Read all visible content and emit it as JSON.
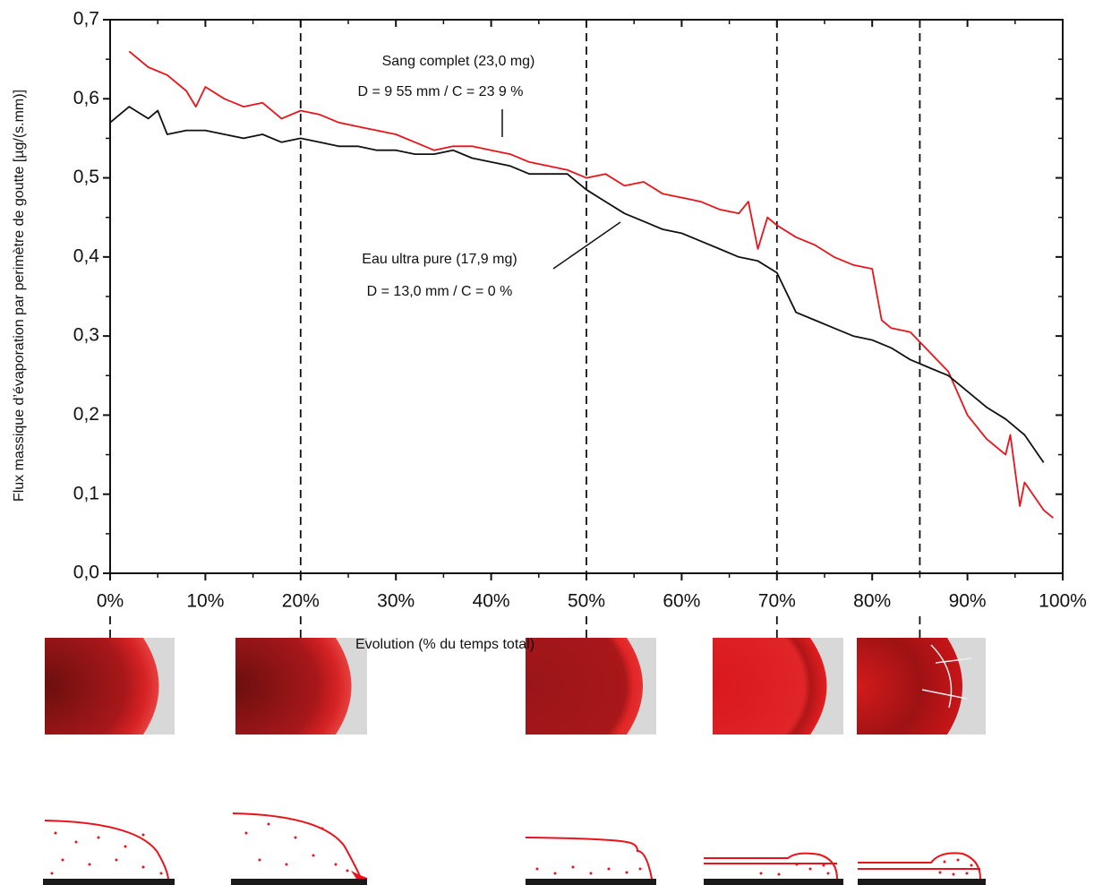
{
  "chart_data": {
    "type": "line",
    "x_label": "Evolution (% du temps total)",
    "y_label": "Flux massique d’évaporation par perimètre de goutte [µg/(s.mm)]",
    "xlim": [
      0,
      100
    ],
    "xticks": [
      {
        "value": 0,
        "label": "0%"
      },
      {
        "value": 10,
        "label": "10%"
      },
      {
        "value": 20,
        "label": "20%"
      },
      {
        "value": 30,
        "label": "30%"
      },
      {
        "value": 40,
        "label": "40%"
      },
      {
        "value": 50,
        "label": "50%"
      },
      {
        "value": 60,
        "label": "60%"
      },
      {
        "value": 70,
        "label": "70%"
      },
      {
        "value": 80,
        "label": "80%"
      },
      {
        "value": 90,
        "label": "90%"
      },
      {
        "value": 100,
        "label": "100%"
      }
    ],
    "ylim": [
      0,
      0.7
    ],
    "yticks": [
      {
        "value": 0,
        "label": "0,0"
      },
      {
        "value": 0.1,
        "label": "0,1"
      },
      {
        "value": 0.2,
        "label": "0,2"
      },
      {
        "value": 0.3,
        "label": "0,3"
      },
      {
        "value": 0.4,
        "label": "0,4"
      },
      {
        "value": 0.5,
        "label": "0,5"
      },
      {
        "value": 0.6,
        "label": "0,6"
      },
      {
        "value": 0.7,
        "label": "0,7"
      }
    ],
    "vlines": [
      0,
      20,
      50,
      70,
      85
    ],
    "series": [
      {
        "name": "Sang complet (23,0 mg)",
        "detail": "D = 9 55 mm / C = 23 9 %",
        "color": "#e8141b",
        "x": [
          2,
          4,
          6,
          8,
          9,
          10,
          12,
          14,
          16,
          18,
          20,
          22,
          24,
          26,
          28,
          30,
          32,
          34,
          36,
          38,
          40,
          42,
          44,
          46,
          48,
          50,
          52,
          54,
          56,
          58,
          60,
          62,
          64,
          66,
          67,
          68,
          69,
          70,
          72,
          74,
          76,
          78,
          80,
          81,
          82,
          84,
          86,
          88,
          90,
          92,
          94,
          94.5,
          95,
          95.5,
          96,
          98,
          99
        ],
        "values": [
          0.66,
          0.64,
          0.63,
          0.61,
          0.59,
          0.615,
          0.6,
          0.59,
          0.595,
          0.575,
          0.585,
          0.58,
          0.57,
          0.565,
          0.56,
          0.555,
          0.545,
          0.535,
          0.54,
          0.54,
          0.535,
          0.53,
          0.52,
          0.515,
          0.51,
          0.5,
          0.505,
          0.49,
          0.495,
          0.48,
          0.475,
          0.47,
          0.46,
          0.455,
          0.47,
          0.41,
          0.45,
          0.44,
          0.425,
          0.415,
          0.4,
          0.39,
          0.385,
          0.32,
          0.31,
          0.305,
          0.28,
          0.255,
          0.2,
          0.17,
          0.15,
          0.175,
          0.13,
          0.085,
          0.115,
          0.08,
          0.07
        ]
      },
      {
        "name": "Eau ultra pure (17,9 mg)",
        "detail": "D = 13,0 mm / C = 0 %",
        "color": "#111111",
        "x": [
          0,
          2,
          4,
          5,
          6,
          8,
          10,
          12,
          14,
          16,
          18,
          20,
          22,
          24,
          26,
          28,
          30,
          32,
          34,
          36,
          38,
          40,
          42,
          44,
          46,
          48,
          50,
          52,
          54,
          56,
          58,
          60,
          62,
          64,
          66,
          68,
          70,
          72,
          74,
          76,
          78,
          80,
          82,
          84,
          86,
          88,
          90,
          92,
          94,
          96,
          98
        ],
        "values": [
          0.57,
          0.59,
          0.575,
          0.585,
          0.555,
          0.56,
          0.56,
          0.555,
          0.55,
          0.555,
          0.545,
          0.55,
          0.545,
          0.54,
          0.54,
          0.535,
          0.535,
          0.53,
          0.53,
          0.535,
          0.525,
          0.52,
          0.515,
          0.505,
          0.505,
          0.505,
          0.485,
          0.47,
          0.455,
          0.445,
          0.435,
          0.43,
          0.42,
          0.41,
          0.4,
          0.395,
          0.38,
          0.33,
          0.32,
          0.31,
          0.3,
          0.295,
          0.285,
          0.27,
          0.26,
          0.25,
          0.23,
          0.21,
          0.195,
          0.175,
          0.14
        ]
      }
    ]
  }
}
